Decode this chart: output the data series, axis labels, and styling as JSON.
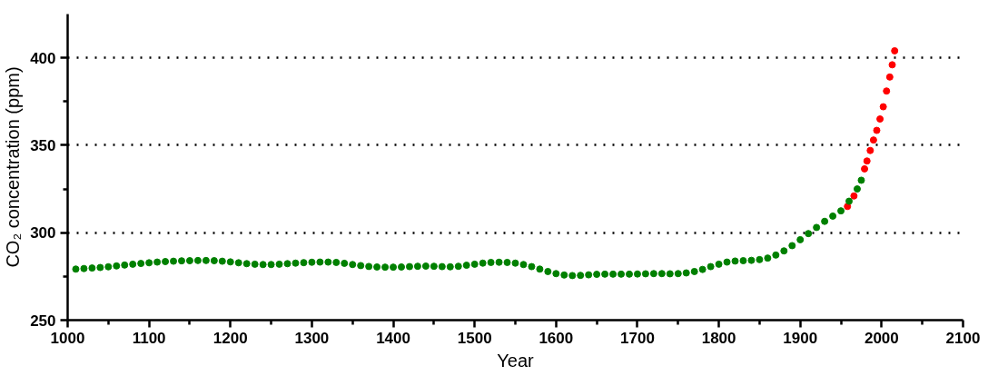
{
  "chart_data": {
    "type": "scatter",
    "xlabel": "Year",
    "ylabel": "CO₂ concentration (ppm)",
    "xlim": [
      1000,
      2100
    ],
    "xticks": [
      1000,
      1100,
      1200,
      1300,
      1400,
      1500,
      1600,
      1700,
      1800,
      1900,
      2000,
      2100
    ],
    "ylim": [
      250,
      425
    ],
    "yticks": [
      250,
      300,
      350,
      400
    ],
    "grid": "y",
    "marker": "circle",
    "series": [
      {
        "color": "#ff0000",
        "x": [
          1958,
          1966,
          1979,
          1982,
          1986,
          1990,
          1994,
          1998,
          2002,
          2006,
          2010,
          2013,
          2016
        ],
        "values": [
          315,
          321,
          336.5,
          341,
          347,
          353,
          358.5,
          365,
          372,
          381,
          389,
          396,
          404
        ]
      },
      {
        "color": "#008000",
        "x": [
          1010,
          1020,
          1030,
          1040,
          1050,
          1060,
          1070,
          1080,
          1090,
          1100,
          1110,
          1120,
          1130,
          1140,
          1150,
          1160,
          1170,
          1180,
          1190,
          1200,
          1210,
          1220,
          1230,
          1240,
          1250,
          1260,
          1270,
          1280,
          1290,
          1300,
          1310,
          1320,
          1330,
          1340,
          1350,
          1360,
          1370,
          1380,
          1390,
          1400,
          1410,
          1420,
          1430,
          1440,
          1450,
          1460,
          1470,
          1480,
          1490,
          1500,
          1510,
          1520,
          1530,
          1540,
          1550,
          1560,
          1570,
          1580,
          1590,
          1600,
          1610,
          1620,
          1630,
          1640,
          1650,
          1660,
          1670,
          1680,
          1690,
          1700,
          1710,
          1720,
          1730,
          1740,
          1750,
          1760,
          1770,
          1780,
          1790,
          1800,
          1810,
          1820,
          1830,
          1840,
          1850,
          1860,
          1870,
          1880,
          1890,
          1900,
          1910,
          1920,
          1930,
          1940,
          1950,
          1960,
          1970,
          1975
        ],
        "values": [
          279.2,
          279.5,
          279.8,
          280.1,
          280.5,
          281,
          281.5,
          282,
          282.4,
          282.8,
          283.2,
          283.5,
          283.7,
          283.9,
          284,
          284.1,
          284.1,
          284,
          283.7,
          283.3,
          282.8,
          282.3,
          282,
          281.8,
          281.8,
          282,
          282.3,
          282.6,
          282.9,
          283.1,
          283.2,
          283.2,
          283,
          282.5,
          281.8,
          281.2,
          280.7,
          280.4,
          280.3,
          280.3,
          280.4,
          280.6,
          280.8,
          280.9,
          280.8,
          280.6,
          280.5,
          280.8,
          281.4,
          282,
          282.6,
          283,
          283.1,
          283,
          282.6,
          281.8,
          280.6,
          279.2,
          277.8,
          276.6,
          275.8,
          275.5,
          275.6,
          275.9,
          276.2,
          276.3,
          276.3,
          276.3,
          276.3,
          276.4,
          276.5,
          276.6,
          276.6,
          276.5,
          276.6,
          277,
          277.8,
          279,
          280.6,
          282,
          283.2,
          283.8,
          284,
          284.2,
          284.6,
          285.5,
          287.2,
          289.6,
          292.6,
          296,
          299.5,
          303,
          306.5,
          309.5,
          312.5,
          318,
          325,
          330
        ]
      }
    ]
  }
}
